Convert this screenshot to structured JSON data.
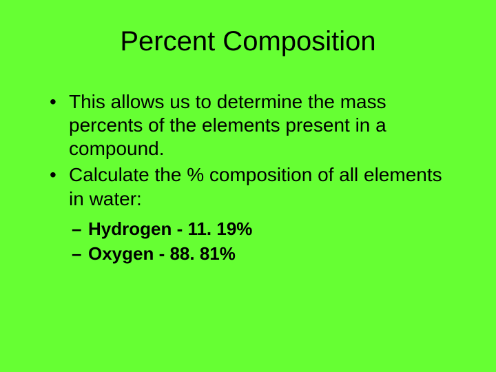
{
  "background_color": "#66ff33",
  "text_color": "#000000",
  "font_family": "Arial",
  "title": {
    "text": "Percent Composition",
    "fontsize": 40,
    "align": "center"
  },
  "bullets": [
    {
      "text": "This allows us to determine the mass percents of the elements present in a compound."
    },
    {
      "text": "Calculate the % composition of all elements in water:"
    }
  ],
  "sub_bullets": [
    {
      "text": "Hydrogen - 11. 19%"
    },
    {
      "text": "Oxygen - 88. 81%"
    }
  ],
  "bullet_fontsize": 28,
  "sub_bullet_fontsize": 26,
  "sub_bullet_fontweight": "bold"
}
